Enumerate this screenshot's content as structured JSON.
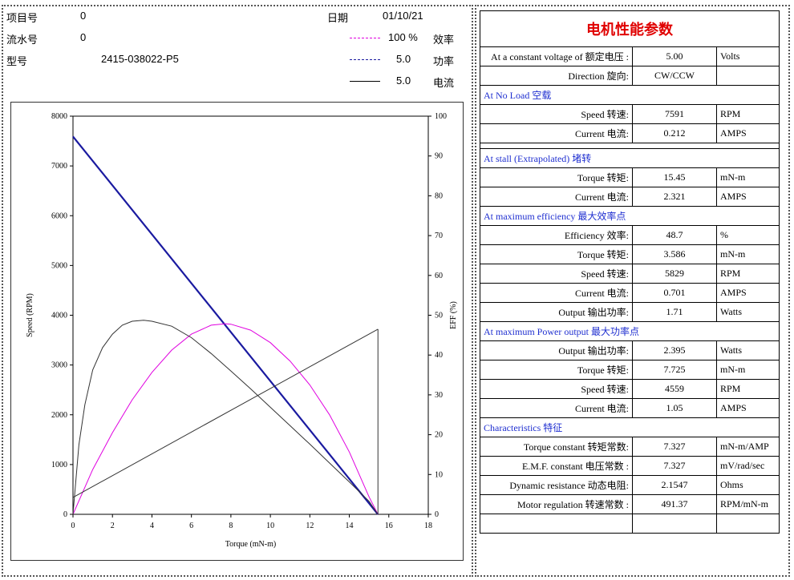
{
  "header": {
    "project_label": "项目号",
    "project_value": "0",
    "serial_label": "流水号",
    "serial_value": "0",
    "model_label": "型号",
    "model_value": "2415-038022-P5",
    "date_label": "日期",
    "date_value": "01/10/21"
  },
  "legend": [
    {
      "value": "100 %",
      "name": "效率",
      "color": "#e000e0",
      "style": "dashdot"
    },
    {
      "value": "5.0",
      "name": "功率",
      "color": "#1a1aa0",
      "style": "dashed"
    },
    {
      "value": "5.0",
      "name": "电流",
      "color": "#000000",
      "style": "solid"
    }
  ],
  "chart_data": {
    "type": "line",
    "xlabel": "Torque (mN-m)",
    "ylabel": "Speed (RPM)",
    "y2label": "EFF (%)",
    "xlim": [
      0,
      18
    ],
    "ylim": [
      0,
      8000
    ],
    "y2lim": [
      0,
      100
    ],
    "x_ticks": [
      0,
      2,
      4,
      6,
      8,
      10,
      12,
      14,
      16,
      18
    ],
    "y_ticks": [
      0,
      1000,
      2000,
      3000,
      4000,
      5000,
      6000,
      7000,
      8000
    ],
    "y2_ticks": [
      0,
      10,
      20,
      30,
      40,
      50,
      60,
      70,
      80,
      90,
      100
    ],
    "stall_torque": 15.45,
    "series": [
      {
        "color": "#1a1aa0",
        "axis": "left",
        "x": [
          0,
          15.45
        ],
        "y": [
          7591,
          0
        ]
      },
      {
        "color": "#e000e0",
        "axis": "left",
        "x": [
          0,
          1,
          2,
          3,
          4,
          5,
          6,
          7,
          7.725,
          8,
          9,
          10,
          11,
          12,
          13,
          14,
          15,
          15.45
        ],
        "y": [
          0,
          900,
          1640,
          2300,
          2850,
          3300,
          3620,
          3800,
          3830,
          3820,
          3700,
          3450,
          3080,
          2600,
          2000,
          1250,
          350,
          0
        ]
      },
      {
        "color": "#333333",
        "axis": "left",
        "x": [
          0,
          0.3,
          0.6,
          1,
          1.5,
          2,
          2.5,
          3,
          3.58,
          4,
          5,
          6,
          7,
          8,
          9,
          10,
          11,
          12,
          13,
          14,
          15,
          15.45
        ],
        "y": [
          0,
          1400,
          2200,
          2900,
          3350,
          3620,
          3800,
          3880,
          3900,
          3880,
          3780,
          3550,
          3230,
          2880,
          2520,
          2150,
          1780,
          1410,
          1030,
          650,
          260,
          0
        ]
      },
      {
        "color": "#333333",
        "axis": "left",
        "x": [
          0,
          15.45
        ],
        "y": [
          340,
          3720
        ]
      }
    ]
  },
  "table": {
    "title": "电机性能参数",
    "voltage_label": "At a constant voltage of 额定电压 :",
    "voltage_value": "5.00",
    "voltage_unit": "Volts",
    "direction_label": "Direction 旋向:",
    "direction_value": "CW/CCW",
    "no_load_title": "At No Load 空载",
    "no_load": [
      {
        "label": "Speed 转速:",
        "value": "7591",
        "unit": "RPM"
      },
      {
        "label": "Current 电流:",
        "value": "0.212",
        "unit": "AMPS"
      }
    ],
    "stall_title": "At stall (Extrapolated) 堵转",
    "stall": [
      {
        "label": "Torque 转矩:",
        "value": "15.45",
        "unit": "mN-m"
      },
      {
        "label": "Current 电流:",
        "value": "2.321",
        "unit": "AMPS"
      }
    ],
    "max_eff_title": "At maximum efficiency 最大效率点",
    "max_eff": [
      {
        "label": "Efficiency 效率:",
        "value": "48.7",
        "unit": "%"
      },
      {
        "label": "Torque 转矩:",
        "value": "3.586",
        "unit": "mN-m"
      },
      {
        "label": "Speed 转速:",
        "value": "5829",
        "unit": "RPM"
      },
      {
        "label": "Current 电流:",
        "value": "0.701",
        "unit": "AMPS"
      },
      {
        "label": "Output 输出功率:",
        "value": "1.71",
        "unit": "Watts"
      }
    ],
    "max_power_title": "At maximum Power output 最大功率点",
    "max_power": [
      {
        "label": "Output 输出功率:",
        "value": "2.395",
        "unit": "Watts"
      },
      {
        "label": "Torque 转矩:",
        "value": "7.725",
        "unit": "mN-m"
      },
      {
        "label": "Speed 转速:",
        "value": "4559",
        "unit": "RPM"
      },
      {
        "label": "Current 电流:",
        "value": "1.05",
        "unit": "AMPS"
      }
    ],
    "char_title": "Characteristics 特征",
    "characteristics": [
      {
        "label": "Torque constant 转矩常数:",
        "value": "7.327",
        "unit": "mN-m/AMP"
      },
      {
        "label": "E.M.F. constant 电压常数 :",
        "value": "7.327",
        "unit": "mV/rad/sec"
      },
      {
        "label": "Dynamic resistance 动态电阻:",
        "value": "2.1547",
        "unit": "Ohms"
      },
      {
        "label": "Motor regulation 转速常数 :",
        "value": "491.37",
        "unit": "RPM/mN-m"
      }
    ]
  }
}
